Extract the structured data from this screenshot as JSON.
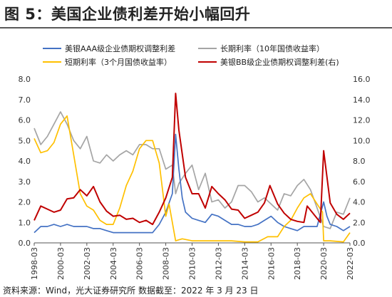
{
  "header": {
    "title": "图 5：美国企业债利差开始小幅回升"
  },
  "footer": {
    "source": "资料来源：Wind，光大证券研究所  数据截至：2022 年 3 月 23 日"
  },
  "colors": {
    "aaa": "#4472C4",
    "long": "#A5A5A5",
    "short": "#FFC000",
    "bb": "#C00000",
    "axis": "#555555"
  },
  "chart_data": {
    "type": "line",
    "x_start": "1998-03",
    "x_end": "2022-03",
    "x_tick_labels": [
      "1998-03",
      "2000-03",
      "2002-03",
      "2004-03",
      "2006-03",
      "2008-03",
      "2010-03",
      "2012-03",
      "2014-03",
      "2016-03",
      "2018-03",
      "2020-03",
      "2022-03"
    ],
    "y_left": {
      "lim": [
        0,
        8
      ],
      "ticks": [
        "0.0",
        "1.0",
        "2.0",
        "3.0",
        "4.0",
        "5.0",
        "6.0",
        "7.0",
        "8.0"
      ]
    },
    "y_right": {
      "lim": [
        0,
        16
      ],
      "ticks": [
        "0.0",
        "2.0",
        "4.0",
        "6.0",
        "8.0",
        "10.0",
        "12.0",
        "14.0",
        "16.0"
      ]
    },
    "grid": false,
    "legend_position": "top",
    "series": [
      {
        "name": "美银AAA级企业债期权调整利差",
        "axis": "left",
        "color_key": "aaa",
        "x": [
          "1998-03",
          "1998-09",
          "1999-03",
          "1999-09",
          "2000-03",
          "2000-09",
          "2001-03",
          "2001-09",
          "2002-03",
          "2002-09",
          "2003-03",
          "2003-09",
          "2004-03",
          "2004-09",
          "2005-03",
          "2005-09",
          "2006-03",
          "2006-09",
          "2007-03",
          "2007-09",
          "2008-03",
          "2008-09",
          "2008-12",
          "2009-03",
          "2009-06",
          "2009-09",
          "2010-03",
          "2010-09",
          "2011-03",
          "2011-09",
          "2012-03",
          "2012-09",
          "2013-03",
          "2013-09",
          "2014-03",
          "2014-09",
          "2015-03",
          "2015-09",
          "2016-03",
          "2016-09",
          "2017-03",
          "2017-09",
          "2018-03",
          "2018-09",
          "2019-03",
          "2019-09",
          "2020-03",
          "2020-06",
          "2020-09",
          "2021-03",
          "2021-09",
          "2022-03"
        ],
        "values": [
          0.5,
          0.8,
          0.8,
          0.9,
          0.8,
          0.9,
          0.8,
          0.8,
          0.8,
          0.7,
          0.7,
          0.6,
          0.5,
          0.5,
          0.5,
          0.5,
          0.5,
          0.5,
          0.5,
          0.9,
          1.5,
          2.4,
          5.3,
          3.6,
          2.2,
          1.5,
          1.2,
          1.1,
          1.0,
          1.4,
          1.3,
          1.1,
          0.9,
          0.9,
          0.8,
          0.8,
          0.9,
          1.1,
          1.3,
          1.0,
          0.8,
          0.7,
          0.6,
          0.8,
          0.8,
          0.8,
          2.0,
          1.3,
          0.9,
          0.8,
          0.6,
          0.8
        ]
      },
      {
        "name": "长期利率（10年国债收益率）",
        "axis": "left",
        "color_key": "long",
        "x": [
          "1998-03",
          "1998-09",
          "1999-03",
          "1999-09",
          "2000-03",
          "2000-09",
          "2001-03",
          "2001-09",
          "2002-03",
          "2002-09",
          "2003-03",
          "2003-09",
          "2004-03",
          "2004-09",
          "2005-03",
          "2005-09",
          "2006-03",
          "2006-09",
          "2007-03",
          "2007-09",
          "2008-03",
          "2008-09",
          "2008-12",
          "2009-03",
          "2009-09",
          "2010-03",
          "2010-09",
          "2011-03",
          "2011-09",
          "2012-03",
          "2012-09",
          "2013-03",
          "2013-09",
          "2014-03",
          "2014-09",
          "2015-03",
          "2015-09",
          "2016-03",
          "2016-09",
          "2017-03",
          "2017-09",
          "2018-03",
          "2018-09",
          "2019-03",
          "2019-09",
          "2020-03",
          "2020-09",
          "2021-03",
          "2021-09",
          "2022-03"
        ],
        "values": [
          5.6,
          4.8,
          5.2,
          5.8,
          6.4,
          5.8,
          5.0,
          4.6,
          5.2,
          4.0,
          3.9,
          4.3,
          4.0,
          4.3,
          4.5,
          4.3,
          4.8,
          4.8,
          4.6,
          4.6,
          3.6,
          3.8,
          2.4,
          2.9,
          3.4,
          3.8,
          2.6,
          3.4,
          2.0,
          2.1,
          1.7,
          2.0,
          2.8,
          2.8,
          2.5,
          2.0,
          2.2,
          1.9,
          1.6,
          2.4,
          2.3,
          2.8,
          3.1,
          2.6,
          1.7,
          0.8,
          0.7,
          1.5,
          1.4,
          2.2
        ]
      },
      {
        "name": "短期利率（3个月国债收益率）",
        "axis": "left",
        "color_key": "short",
        "x": [
          "1998-03",
          "1998-09",
          "1999-03",
          "1999-09",
          "2000-03",
          "2000-09",
          "2001-03",
          "2001-09",
          "2002-03",
          "2002-09",
          "2003-03",
          "2003-09",
          "2004-03",
          "2004-09",
          "2005-03",
          "2005-09",
          "2006-03",
          "2006-09",
          "2007-03",
          "2007-09",
          "2008-03",
          "2008-06",
          "2008-12",
          "2009-06",
          "2010-03",
          "2011-03",
          "2012-03",
          "2013-03",
          "2014-03",
          "2015-03",
          "2015-12",
          "2016-09",
          "2017-03",
          "2017-09",
          "2018-03",
          "2018-09",
          "2019-03",
          "2019-09",
          "2020-02",
          "2020-03",
          "2020-09",
          "2021-09",
          "2022-03"
        ],
        "values": [
          5.1,
          4.4,
          4.5,
          4.9,
          5.8,
          6.2,
          4.3,
          2.4,
          1.8,
          1.6,
          1.1,
          0.9,
          0.9,
          1.7,
          2.8,
          3.5,
          4.6,
          5.0,
          5.0,
          3.9,
          1.3,
          1.9,
          0.1,
          0.2,
          0.1,
          0.1,
          0.1,
          0.1,
          0.05,
          0.05,
          0.3,
          0.3,
          0.8,
          1.1,
          1.7,
          2.2,
          2.4,
          1.9,
          1.5,
          0.1,
          0.1,
          0.05,
          0.5
        ]
      },
      {
        "name": "美银BB级企业债期权调整利差(右)",
        "axis": "right",
        "color_key": "bb",
        "x": [
          "1998-03",
          "1998-09",
          "1999-03",
          "1999-09",
          "2000-03",
          "2000-09",
          "2001-03",
          "2001-09",
          "2002-03",
          "2002-09",
          "2003-03",
          "2003-09",
          "2004-03",
          "2004-09",
          "2005-03",
          "2005-09",
          "2006-03",
          "2006-09",
          "2007-03",
          "2007-09",
          "2008-03",
          "2008-09",
          "2008-12",
          "2009-03",
          "2009-09",
          "2010-03",
          "2010-09",
          "2011-03",
          "2011-09",
          "2012-03",
          "2012-09",
          "2013-03",
          "2013-09",
          "2014-03",
          "2014-09",
          "2015-03",
          "2015-09",
          "2015-12",
          "2016-02",
          "2016-09",
          "2017-03",
          "2017-09",
          "2018-03",
          "2018-09",
          "2018-12",
          "2019-06",
          "2019-12",
          "2020-03",
          "2020-09",
          "2021-03",
          "2021-09",
          "2022-03"
        ],
        "values": [
          2.2,
          3.6,
          3.3,
          3.0,
          3.2,
          4.3,
          4.4,
          5.2,
          4.6,
          5.5,
          4.0,
          3.1,
          2.6,
          2.7,
          2.3,
          2.4,
          2.0,
          2.2,
          1.8,
          3.0,
          4.4,
          6.4,
          14.6,
          11.0,
          6.4,
          4.8,
          4.8,
          3.4,
          5.5,
          4.8,
          4.2,
          3.3,
          3.2,
          2.4,
          2.7,
          3.0,
          3.9,
          4.9,
          5.6,
          3.8,
          2.9,
          2.3,
          2.1,
          2.0,
          3.6,
          2.8,
          2.0,
          9.0,
          3.9,
          2.8,
          2.3,
          2.9
        ]
      }
    ]
  }
}
